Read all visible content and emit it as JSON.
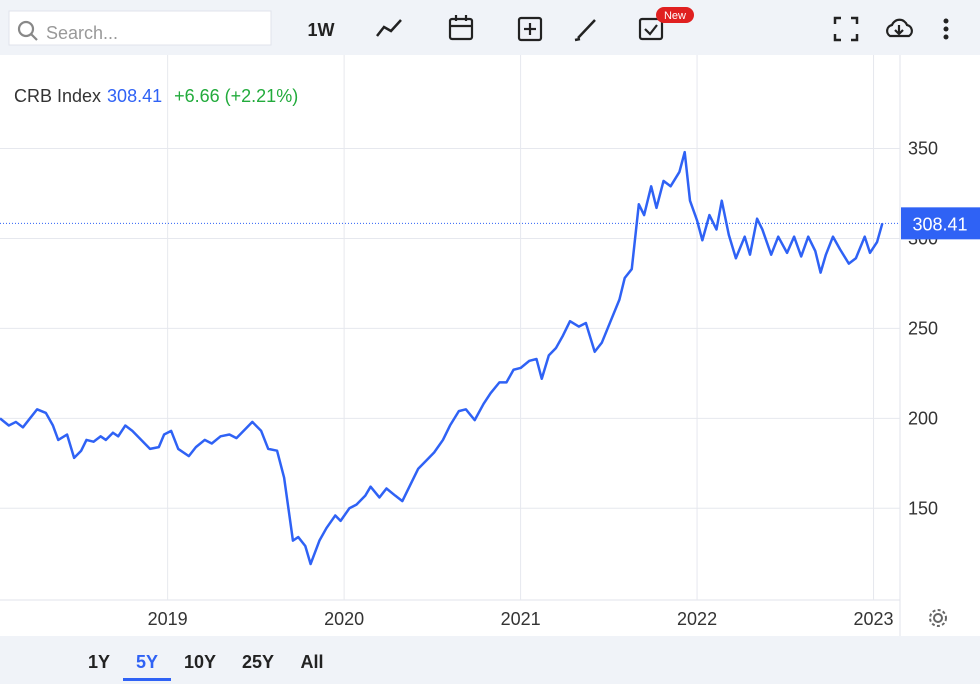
{
  "toolbar": {
    "search_placeholder": "Search...",
    "interval": "1W",
    "badge": "New"
  },
  "ranges": {
    "options": [
      "1Y",
      "5Y",
      "10Y",
      "25Y",
      "All"
    ],
    "active": 1
  },
  "quote": {
    "change": "+6.66",
    "change_pct": "(+2.21%)"
  },
  "chart_data": {
    "type": "line",
    "xlim": [
      2018.05,
      2023.15
    ],
    "ylim": [
      99,
      402
    ],
    "xticks": [
      2019,
      2020,
      2021,
      2022,
      2023
    ],
    "yticks": [
      150,
      200,
      250,
      300,
      350
    ],
    "grid": true,
    "series": [
      {
        "name": "CRB Index",
        "color": "#2f62f5",
        "x": [
          2018.05,
          2018.1,
          2018.14,
          2018.18,
          2018.22,
          2018.26,
          2018.31,
          2018.35,
          2018.38,
          2018.43,
          2018.47,
          2018.51,
          2018.54,
          2018.58,
          2018.62,
          2018.65,
          2018.69,
          2018.72,
          2018.76,
          2018.8,
          2018.85,
          2018.9,
          2018.95,
          2018.98,
          2019.02,
          2019.06,
          2019.12,
          2019.16,
          2019.21,
          2019.25,
          2019.3,
          2019.35,
          2019.39,
          2019.44,
          2019.48,
          2019.53,
          2019.57,
          2019.62,
          2019.66,
          2019.71,
          2019.74,
          2019.78,
          2019.81,
          2019.86,
          2019.9,
          2019.95,
          2019.98,
          2020.03,
          2020.07,
          2020.12,
          2020.15,
          2020.2,
          2020.24,
          2020.29,
          2020.33,
          2020.38,
          2020.42,
          2020.47,
          2020.51,
          2020.56,
          2020.6,
          2020.65,
          2020.69,
          2020.74,
          2020.79,
          2020.83,
          2020.88,
          2020.92,
          2020.96,
          2021.0,
          2021.05,
          2021.09,
          2021.12,
          2021.16,
          2021.2,
          2021.24,
          2021.28,
          2021.33,
          2021.37,
          2021.42,
          2021.46,
          2021.51,
          2021.56,
          2021.59,
          2021.63,
          2021.67,
          2021.7,
          2021.74,
          2021.77,
          2021.81,
          2021.85,
          2021.9,
          2021.93,
          2021.96,
          2022.0,
          2022.03,
          2022.07,
          2022.11,
          2022.14,
          2022.18,
          2022.22,
          2022.27,
          2022.3,
          2022.34,
          2022.37,
          2022.42,
          2022.46,
          2022.51,
          2022.55,
          2022.59,
          2022.63,
          2022.67,
          2022.7,
          2022.73,
          2022.77,
          2022.81,
          2022.86,
          2022.9,
          2022.95,
          2022.98,
          2023.02,
          2023.05
        ],
        "values": [
          200,
          196,
          198,
          195,
          200,
          205,
          203,
          196,
          188,
          191,
          178,
          182,
          188,
          187,
          190,
          188,
          192,
          190,
          196,
          193,
          188,
          183,
          184,
          191,
          193,
          183,
          179,
          184,
          188,
          186,
          190,
          191,
          189,
          194,
          198,
          193,
          183,
          182,
          167,
          132,
          134,
          129,
          119,
          132,
          139,
          146,
          143,
          150,
          152,
          157,
          162,
          156,
          161,
          157,
          154,
          164,
          172,
          177,
          181,
          188,
          196,
          204,
          205,
          199,
          208,
          214,
          220,
          220,
          227,
          228,
          232,
          233,
          222,
          235,
          239,
          246,
          254,
          251,
          253,
          237,
          242,
          254,
          266,
          278,
          283,
          319,
          313,
          329,
          317,
          332,
          329,
          337,
          348,
          321,
          310,
          299,
          313,
          305,
          321,
          302,
          289,
          301,
          291,
          311,
          305,
          291,
          301,
          292,
          301,
          290,
          301,
          293,
          281,
          291,
          301,
          294,
          286,
          289,
          301,
          292,
          298,
          308.41
        ]
      }
    ]
  }
}
